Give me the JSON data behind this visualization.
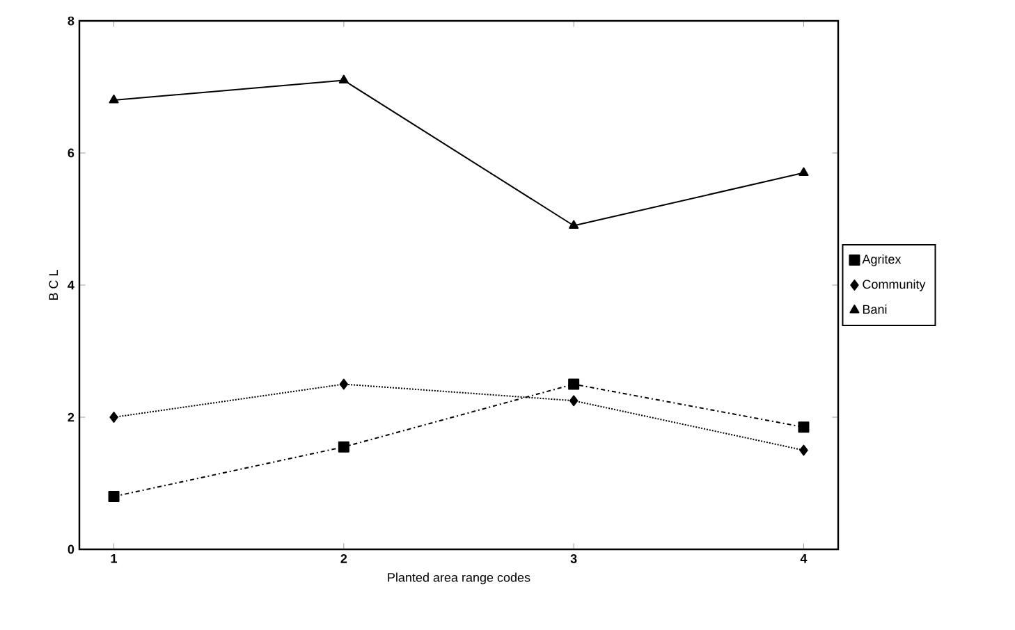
{
  "chart_data": {
    "type": "line",
    "xlabel": "Planted area range codes",
    "ylabel": "B C L",
    "x": [
      1,
      2,
      3,
      4
    ],
    "xlim": [
      0.85,
      4.15
    ],
    "xticks": [
      1,
      2,
      3,
      4
    ],
    "ylim": [
      0,
      8
    ],
    "yticks": [
      0,
      2,
      4,
      6,
      8
    ],
    "grid": false,
    "legend": "right",
    "series": [
      {
        "name": "Agritex",
        "color": "#000000",
        "marker": "square",
        "line_style": "dashed",
        "values": [
          0.8,
          1.55,
          2.5,
          1.85
        ]
      },
      {
        "name": "Community",
        "color": "#000000",
        "marker": "diamond",
        "line_style": "dotted",
        "values": [
          2.0,
          2.5,
          2.25,
          1.5
        ]
      },
      {
        "name": "Bani",
        "color": "#000000",
        "marker": "triangle",
        "line_style": "solid",
        "values": [
          6.8,
          7.1,
          4.9,
          5.7
        ]
      }
    ]
  }
}
